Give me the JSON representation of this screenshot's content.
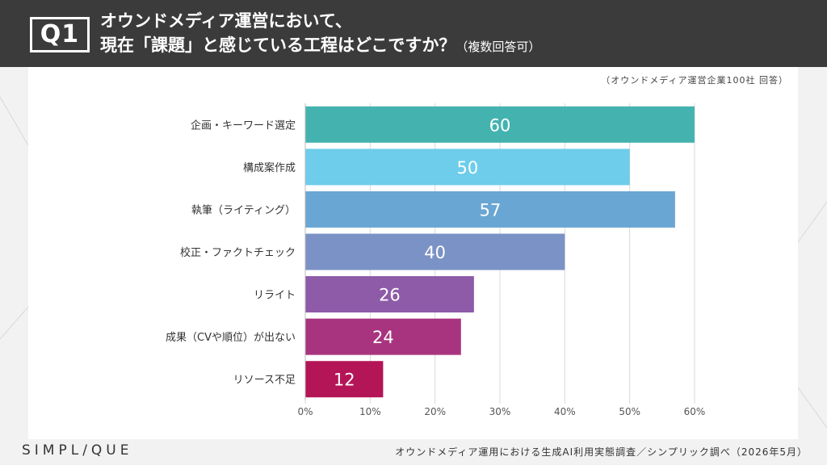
{
  "header": {
    "badge": "Q1",
    "title_line1": "オウンドメディア運営において、",
    "title_line2": "現在「課題」と感じている工程はどこですか？",
    "title_note": "（複数回答可）"
  },
  "source_note": "（オウンドメディア運営企業100社 回答）",
  "footer": {
    "logo": "SIMPL/QUE",
    "source": "オウンドメディア運用における生成AI利用実態調査／シンプリック調べ（2026年5月）"
  },
  "chart_data": {
    "type": "bar",
    "orientation": "horizontal",
    "title": "",
    "xlabel": "",
    "ylabel": "",
    "categories": [
      "企画・キーワード選定",
      "構成案作成",
      "執筆（ライティング）",
      "校正・ファクトチェック",
      "リライト",
      "成果（CVや順位）が出ない",
      "リソース不足"
    ],
    "values": [
      60,
      50,
      57,
      40,
      26,
      24,
      12
    ],
    "value_labels": [
      "60",
      "50",
      "57",
      "40",
      "26",
      "24",
      "12"
    ],
    "bar_colors": [
      "#44b3b0",
      "#6dcdea",
      "#6aa6d3",
      "#7a92c5",
      "#8d5ba8",
      "#a8347f",
      "#b41556"
    ],
    "xlim": [
      0,
      60
    ],
    "xticks": [
      "0%",
      "10%",
      "20%",
      "30%",
      "40%",
      "50%",
      "60%"
    ],
    "grid": true,
    "legend": "none"
  }
}
